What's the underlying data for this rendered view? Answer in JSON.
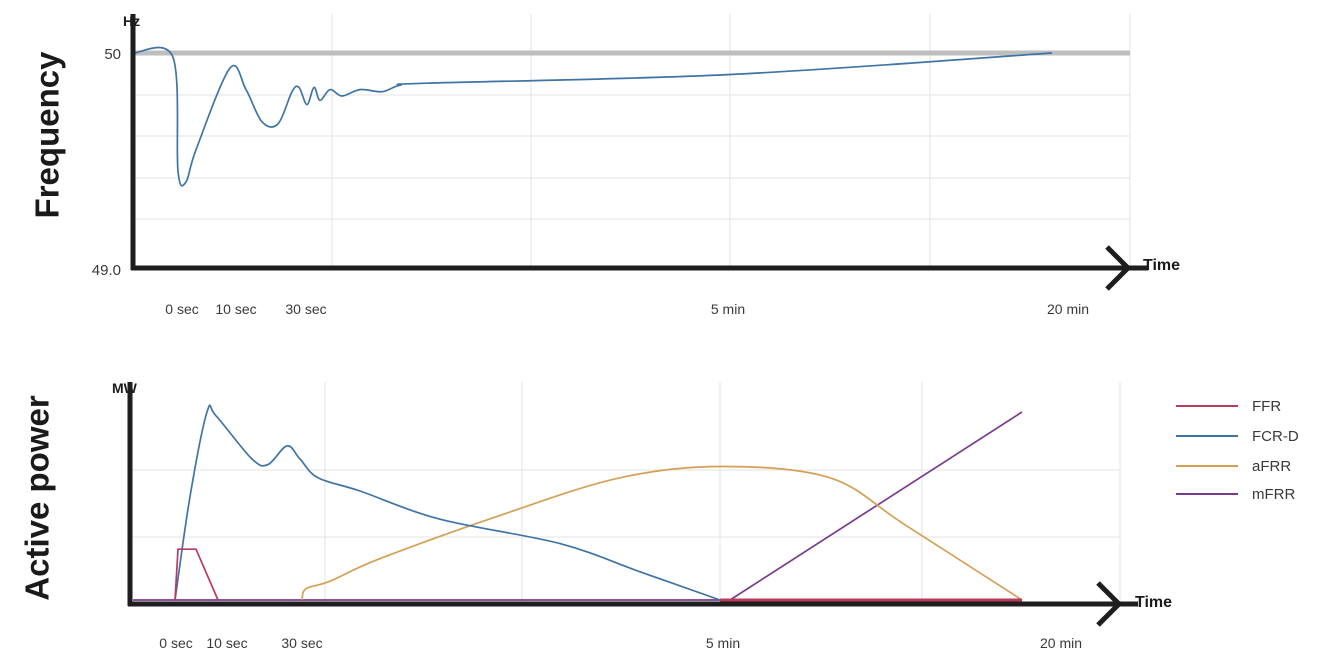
{
  "chart_data": [
    {
      "type": "line",
      "title": "Frequency",
      "ylabel": "Hz",
      "xlabel": "Time",
      "x_ticks": [
        "0 sec",
        "10 sec",
        "30 sec",
        "5 min",
        "20 min"
      ],
      "y_ticks": [
        "50",
        "49.0"
      ],
      "ylim": [
        49.0,
        50.0
      ],
      "grid": true,
      "series": [
        {
          "color": "#3f74a6",
          "points": [
            [
              "0 sec",
              50.0
            ],
            [
              "",
              49.98
            ],
            [
              "",
              49.45
            ],
            [
              "",
              49.4
            ],
            [
              "",
              49.55
            ],
            [
              "10 sec",
              49.93
            ],
            [
              "",
              49.83
            ],
            [
              "",
              49.68
            ],
            [
              "",
              49.67
            ],
            [
              "",
              49.82
            ],
            [
              "",
              49.84
            ],
            [
              "",
              49.76
            ],
            [
              "",
              49.84
            ],
            [
              "",
              49.78
            ],
            [
              "30 sec",
              49.83
            ],
            [
              "",
              49.8
            ],
            [
              "",
              49.83
            ],
            [
              "",
              49.82
            ],
            [
              "",
              49.85
            ],
            [
              "",
              49.86
            ],
            [
              "5 min",
              49.9
            ],
            [
              "20 min",
              50.0
            ]
          ]
        },
        {
          "color": "#bebebe",
          "points": [
            [
              "0 sec",
              50.0
            ],
            [
              "20 min",
              50.0
            ]
          ]
        }
      ]
    },
    {
      "type": "line",
      "title": "Active power",
      "ylabel": "MW",
      "xlabel": "Time",
      "x_ticks": [
        "0 sec",
        "10 sec",
        "30 sec",
        "5 min",
        "20 min"
      ],
      "ylim": [
        0,
        100
      ],
      "grid": true,
      "legend_position": "top-right",
      "series": [
        {
          "name": "FFR",
          "color": "#b83a5e",
          "points": [
            [
              "0 sec",
              0
            ],
            [
              "",
              27
            ],
            [
              "",
              27
            ],
            [
              "10 sec",
              0
            ],
            [
              "5 min",
              0
            ],
            [
              "20 min",
              0
            ]
          ]
        },
        {
          "name": "FCR-D",
          "color": "#3f74a6",
          "points": [
            [
              "0 sec",
              0
            ],
            [
              "",
              55
            ],
            [
              "",
              100
            ],
            [
              "",
              98
            ],
            [
              "",
              75
            ],
            [
              "",
              72
            ],
            [
              "",
              82
            ],
            [
              "",
              75
            ],
            [
              "30 sec",
              65
            ],
            [
              "",
              58
            ],
            [
              "",
              43
            ],
            [
              "",
              30
            ],
            [
              "",
              15
            ],
            [
              "5 min",
              0
            ]
          ]
        },
        {
          "name": "aFRR",
          "color": "#d4a055",
          "points": [
            [
              "30 sec",
              0
            ],
            [
              "",
              6
            ],
            [
              "",
              10
            ],
            [
              "",
              22
            ],
            [
              "",
              45
            ],
            [
              "",
              65
            ],
            [
              "5 min",
              71
            ],
            [
              "",
              65
            ],
            [
              "",
              40
            ],
            [
              "20 min",
              0
            ]
          ]
        },
        {
          "name": "mFRR",
          "color": "#7a3a8c",
          "points": [
            [
              "0 sec",
              0
            ],
            [
              "5 min",
              0
            ],
            [
              "20 min",
              100
            ]
          ]
        }
      ]
    }
  ],
  "panels": {
    "frequency": {
      "title": "Frequency",
      "unit": "Hz",
      "xlabel": "Time",
      "y_top": "50",
      "y_bottom": "49.0"
    },
    "power": {
      "title": "Active power",
      "unit": "MW",
      "xlabel": "Time"
    }
  },
  "x_ticks": [
    "0 sec",
    "10 sec",
    "30 sec",
    "5 min",
    "20 min"
  ],
  "legend": [
    {
      "label": "FFR",
      "color": "#b83a5e"
    },
    {
      "label": "FCR-D",
      "color": "#3f74a6"
    },
    {
      "label": "aFRR",
      "color": "#d4a055"
    },
    {
      "label": "mFRR",
      "color": "#7a3a8c"
    }
  ]
}
